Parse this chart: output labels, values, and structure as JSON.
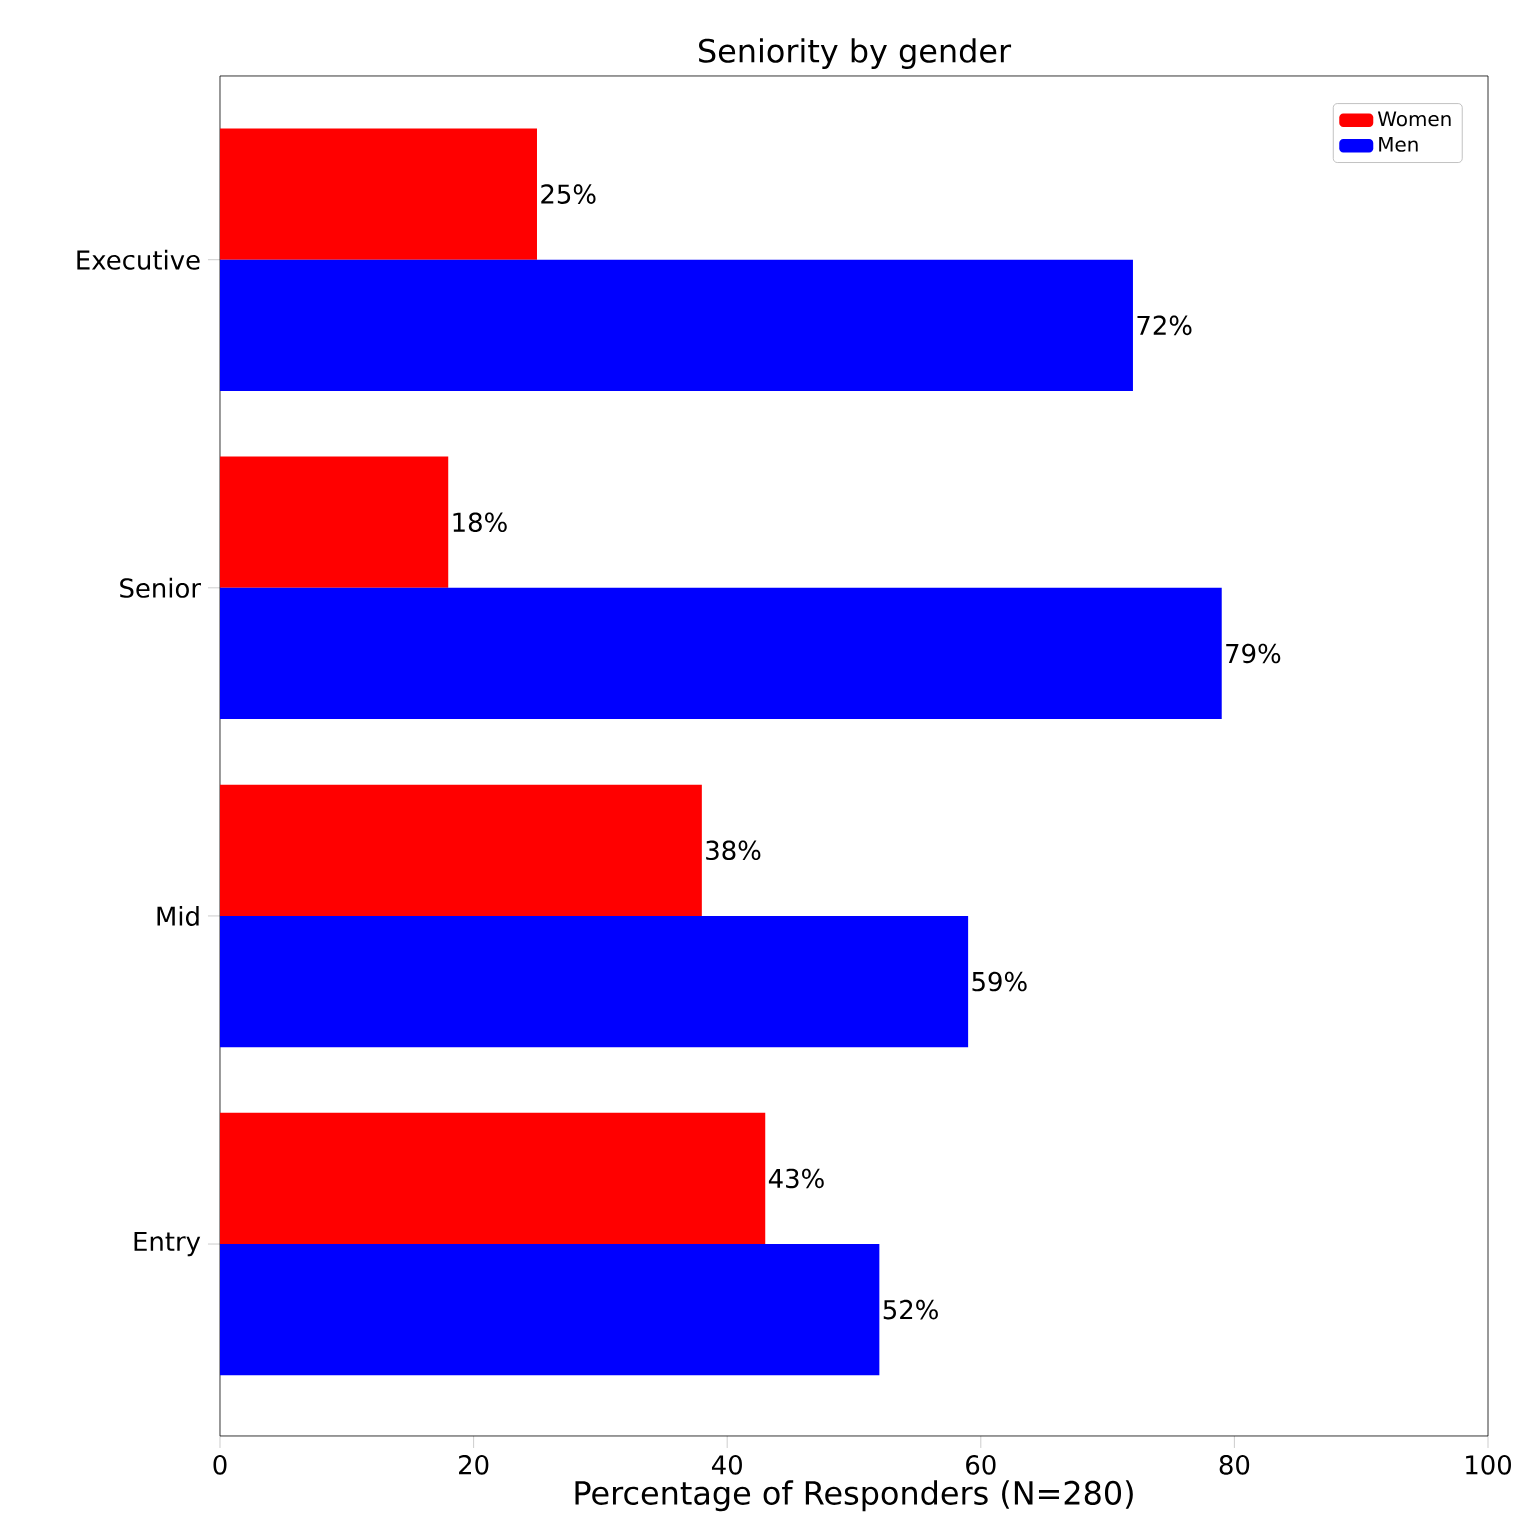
{
  "chart_data": {
    "type": "bar",
    "orientation": "horizontal",
    "title": "Seniority by gender",
    "xlabel": "Percentage of Responders (N=280)",
    "categories": [
      "Executive",
      "Senior",
      "Mid",
      "Entry"
    ],
    "series": [
      {
        "name": "Women",
        "color": "#ff0000",
        "values": [
          25,
          18,
          38,
          43
        ],
        "value_labels": [
          "25%",
          "18%",
          "38%",
          "43%"
        ]
      },
      {
        "name": "Men",
        "color": "#0000ff",
        "values": [
          72,
          79,
          59,
          52
        ],
        "value_labels": [
          "72%",
          "79%",
          "59%",
          "52%"
        ]
      }
    ],
    "xlim": [
      0,
      100
    ],
    "xticks": [
      0,
      20,
      40,
      60,
      80,
      100
    ],
    "legend": "top right"
  }
}
